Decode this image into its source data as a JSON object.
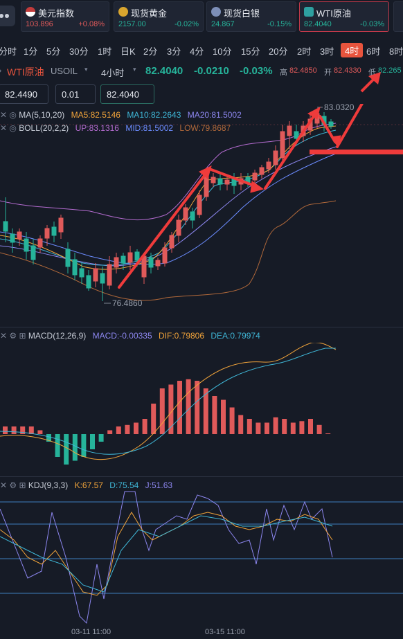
{
  "quotes": [
    {
      "name": "美元指数",
      "value": "103.896",
      "change": "+0.08%",
      "change_dir": "up"
    },
    {
      "name": "现货黄金",
      "value": "2157.00",
      "change": "-0.02%",
      "change_dir": "down"
    },
    {
      "name": "现货白银",
      "value": "24.867",
      "change": "-0.15%",
      "change_dir": "down"
    },
    {
      "name": "WTI原油",
      "value": "82.4040",
      "change": "-0.03%",
      "change_dir": "down"
    }
  ],
  "timeframes": [
    "分时",
    "1分",
    "5分",
    "30分",
    "1时",
    "日K",
    "2分",
    "3分",
    "4分",
    "10分",
    "15分",
    "20分",
    "2时",
    "3时",
    "4时",
    "6时",
    "8时"
  ],
  "selected_timeframe": "4时",
  "symbol": {
    "name": "WTI原油",
    "code": "USOIL",
    "period": "4小时",
    "price": "82.4040",
    "change": "-0.0210",
    "change_pct": "-0.03%",
    "high_label": "高",
    "high": "82.4850",
    "open_label": "开",
    "open": "82.4330",
    "low_label": "低",
    "low": "82.265"
  },
  "order": {
    "sell_price": "82.4490",
    "lot": "0.01",
    "buy_price": "82.4040"
  },
  "ma_legend": {
    "title": "MA(5,10,20)",
    "ma5": "MA5:82.5146",
    "ma10": "MA10:82.2643",
    "ma20": "MA20:81.5002"
  },
  "boll_legend": {
    "title": "BOLL(20,2,2)",
    "up": "UP:83.1316",
    "mid": "MID:81.5002",
    "low": "LOW:79.8687"
  },
  "macd_legend": {
    "title": "MACD(12,26,9)",
    "macd": "MACD:-0.00335",
    "dif": "DIF:0.79806",
    "dea": "DEA:0.79974"
  },
  "kdj_legend": {
    "title": "KDJ(9,3,3)",
    "k": "K:67.57",
    "d": "D:75.54",
    "j": "J:51.63"
  },
  "chart_annotations": {
    "high_mark": "83.0320",
    "low_mark": "76.4860"
  },
  "x_labels": [
    "03-11 11:00",
    "03-15 11:00"
  ],
  "colors": {
    "up": "#e05a5a",
    "down": "#26b39a",
    "ma5": "#f0a33a",
    "ma10": "#3fb6d6",
    "ma20": "#8c86ee",
    "boll_up": "#b46cd0",
    "boll_mid": "#6c8cff",
    "boll_low": "#b0683a",
    "arrows": "#ef3b3b",
    "selected_tab": "#e8543d"
  },
  "chart_data": {
    "type": "candlestick",
    "series": [
      {
        "name": "candles",
        "close_values": [
          80.6,
          80.9,
          80.7,
          80.3,
          80.1,
          79.8,
          80.2,
          79.9,
          80.4,
          79.6,
          79.2,
          78.4,
          77.9,
          78.2,
          77.6,
          77.1,
          77.9,
          78.3,
          78.0,
          78.6,
          78.3,
          78.5,
          78.0,
          78.4,
          78.2,
          78.9,
          79.6,
          80.4,
          80.0,
          80.9,
          81.4,
          82.0,
          82.3,
          82.1,
          82.0,
          82.1,
          81.8,
          82.0,
          82.2,
          82.4,
          82.7,
          83.0,
          82.7,
          82.9,
          82.6,
          82.4
        ]
      },
      {
        "name": "MACD",
        "values": [
          0.1,
          0.1,
          0.1,
          0.1,
          0.05,
          -0.1,
          -0.3,
          -0.4,
          -0.35,
          -0.3,
          -0.2,
          -0.1,
          0.05,
          0.1,
          0.12,
          0.15,
          0.2,
          0.4,
          0.6,
          0.65,
          0.7,
          0.72,
          0.7,
          0.6,
          0.5,
          0.45,
          0.35,
          0.25,
          0.2,
          0.15,
          0.15,
          0.22,
          0.2,
          0.15,
          0.17,
          0.2,
          0.12,
          0.0
        ]
      },
      {
        "name": "KDJ",
        "values": [
          70,
          65,
          40,
          30,
          80,
          60,
          20,
          12,
          15,
          70,
          88,
          78,
          70,
          75,
          82,
          84,
          83,
          80,
          80,
          70,
          72,
          78,
          80,
          76,
          70,
          60
        ]
      }
    ],
    "x_tick_labels": [
      "03-11 11:00",
      "03-15 11:00"
    ]
  }
}
